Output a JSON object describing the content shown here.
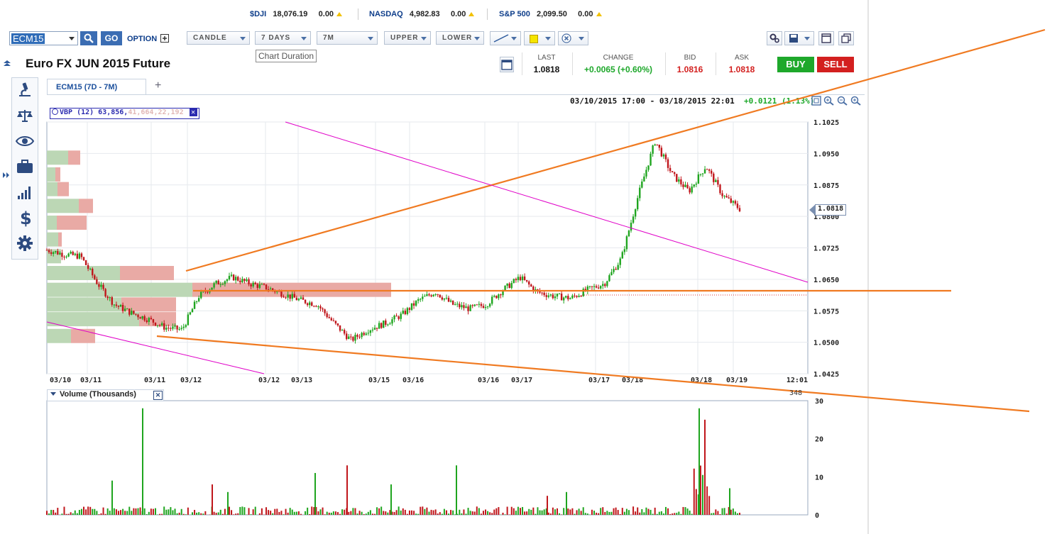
{
  "tickers": [
    {
      "symbol": "$DJI",
      "value": "18,076.19",
      "change": "0.00"
    },
    {
      "symbol": "NASDAQ",
      "value": "4,982.83",
      "change": "0.00"
    },
    {
      "symbol": "S&P 500",
      "value": "2,099.50",
      "change": "0.00"
    }
  ],
  "toolbar": {
    "symbol_value": "ECM15",
    "go_label": "GO",
    "option_label": "OPTION",
    "chart_type": "CANDLE",
    "duration": "7 DAYS",
    "interval": "7M",
    "upper": "UPPER",
    "lower": "LOWER",
    "duration_tooltip": "Chart Duration"
  },
  "instrument": {
    "title": "Euro FX JUN 2015 Future"
  },
  "quote": {
    "last_label": "LAST",
    "last": "1.0818",
    "change_label": "CHANGE",
    "change": "+0.0065 (+0.60%)",
    "bid_label": "BID",
    "bid": "1.0816",
    "ask_label": "ASK",
    "ask": "1.0818",
    "buy_label": "BUY",
    "sell_label": "SELL"
  },
  "tabs": {
    "active": "ECM15 (7D - 7M)",
    "add": "+"
  },
  "chart": {
    "range_text": "03/10/2015 17:00 - 03/18/2015 22:01",
    "range_change": "+0.0121 (1.13%)",
    "vbp_label": "VBP (12) 63,856,",
    "vbp_faded": "41,664,22,192",
    "last_marker": "1.0818",
    "volume_label": "Volume (Thousands)",
    "volume_last": "348",
    "colors": {
      "up": "#1fa51f",
      "down": "#c0161b",
      "trend": "#f07a21",
      "magenta": "#e000c8",
      "vbp_up": "#bcd7b5",
      "vbp_down": "#e9aaa5"
    }
  },
  "chart_data": {
    "type": "candlestick",
    "price_axis": {
      "ticks": [
        "1.1025",
        "1.0950",
        "1.0875",
        "1.0800",
        "1.0725",
        "1.0650",
        "1.0575",
        "1.0500",
        "1.0425"
      ],
      "ylim": [
        1.0425,
        1.1025
      ]
    },
    "x_ticks": [
      "03/10",
      "03/11",
      "03/11",
      "03/12",
      "03/12",
      "03/13",
      "03/15",
      "03/16",
      "03/16",
      "03/17",
      "03/17",
      "03/18",
      "03/18",
      "03/19",
      "12:01"
    ],
    "price_path": [
      [
        "03/10",
        1.072
      ],
      [
        "03/10",
        1.071
      ],
      [
        "03/11",
        1.0705
      ],
      [
        "03/11",
        1.064
      ],
      [
        "03/11",
        1.059
      ],
      [
        "03/11",
        1.057
      ],
      [
        "03/11",
        1.0555
      ],
      [
        "03/11",
        1.0535
      ],
      [
        "03/12",
        1.053
      ],
      [
        "03/12",
        1.061
      ],
      [
        "03/12",
        1.064
      ],
      [
        "03/12",
        1.0655
      ],
      [
        "03/12",
        1.064
      ],
      [
        "03/12",
        1.063
      ],
      [
        "03/13",
        1.0615
      ],
      [
        "03/13",
        1.06
      ],
      [
        "03/13",
        1.059
      ],
      [
        "03/13",
        1.0545
      ],
      [
        "03/15",
        1.0505
      ],
      [
        "03/15",
        1.053
      ],
      [
        "03/15",
        1.0545
      ],
      [
        "03/16",
        1.0565
      ],
      [
        "03/16",
        1.06
      ],
      [
        "03/16",
        1.062
      ],
      [
        "03/16",
        1.059
      ],
      [
        "03/16",
        1.058
      ],
      [
        "03/17",
        1.059
      ],
      [
        "03/17",
        1.0625
      ],
      [
        "03/17",
        1.0655
      ],
      [
        "03/17",
        1.062
      ],
      [
        "03/17",
        1.061
      ],
      [
        "03/18",
        1.0605
      ],
      [
        "03/18",
        1.0625
      ],
      [
        "03/18",
        1.064
      ],
      [
        "03/18",
        1.07
      ],
      [
        "03/18",
        1.085
      ],
      [
        "03/18",
        1.098
      ],
      [
        "03/18",
        1.09
      ],
      [
        "03/18",
        1.086
      ],
      [
        "03/18",
        1.092
      ],
      [
        "03/18",
        1.085
      ],
      [
        "03/18",
        1.0818
      ]
    ],
    "volume_axis": {
      "ticks": [
        "30",
        "20",
        "10",
        "0"
      ],
      "ylim": [
        0,
        30
      ]
    },
    "volume_spikes": [
      [
        "03/11",
        9
      ],
      [
        "03/11",
        28
      ],
      [
        "03/12",
        8
      ],
      [
        "03/12",
        6
      ],
      [
        "03/13",
        11
      ],
      [
        "03/13",
        13
      ],
      [
        "03/15",
        8
      ],
      [
        "03/16",
        13
      ],
      [
        "03/17",
        5
      ],
      [
        "03/17",
        6
      ],
      [
        "03/18",
        28
      ],
      [
        "03/18",
        25
      ],
      [
        "03/18",
        7
      ]
    ],
    "vbp_bars": [
      {
        "price": 1.094,
        "up": 30,
        "down": 17
      },
      {
        "price": 1.09,
        "up": 12,
        "down": 7
      },
      {
        "price": 1.0865,
        "up": 15,
        "down": 16
      },
      {
        "price": 1.0825,
        "up": 45,
        "down": 20
      },
      {
        "price": 1.0785,
        "up": 14,
        "down": 42
      },
      {
        "price": 1.0745,
        "up": 16,
        "down": 5
      },
      {
        "price": 1.0705,
        "up": 20,
        "down": 0
      },
      {
        "price": 1.0665,
        "up": 103,
        "down": 76
      },
      {
        "price": 1.0625,
        "up": 205,
        "down": 280
      },
      {
        "price": 1.059,
        "up": 105,
        "down": 77
      },
      {
        "price": 1.0555,
        "up": 130,
        "down": 52
      },
      {
        "price": 1.0515,
        "up": 34,
        "down": 34
      }
    ]
  }
}
